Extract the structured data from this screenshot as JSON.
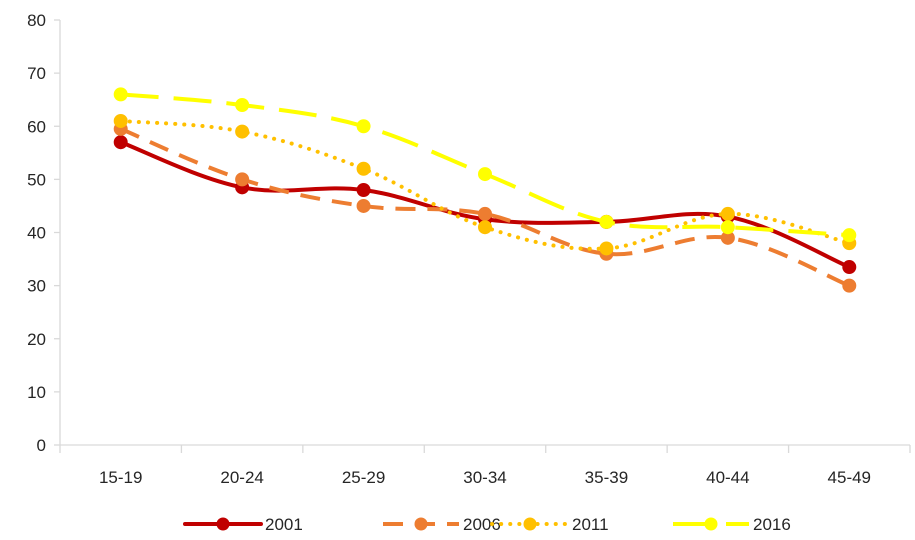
{
  "chart_data": {
    "type": "line",
    "title": "",
    "xlabel": "",
    "ylabel": "",
    "categories": [
      "15-19",
      "20-24",
      "25-29",
      "30-34",
      "35-39",
      "40-44",
      "45-49"
    ],
    "ylim": [
      0,
      80
    ],
    "yticks": [
      "0",
      "10",
      "20",
      "30",
      "40",
      "50",
      "60",
      "70",
      "80"
    ],
    "grid": false,
    "legend_position": "bottom",
    "series": [
      {
        "name": "2001",
        "color": "#c00000",
        "style": "solid",
        "values": [
          57,
          48.5,
          48,
          42.5,
          42,
          43,
          33.5
        ]
      },
      {
        "name": "2006",
        "color": "#ed7d31",
        "style": "dashed",
        "values": [
          59.5,
          50,
          45,
          43.5,
          36,
          39,
          30
        ]
      },
      {
        "name": "2011",
        "color": "#ffc000",
        "style": "dotted",
        "values": [
          61,
          59,
          52,
          41,
          37,
          43.5,
          38
        ]
      },
      {
        "name": "2016",
        "color": "#ffff00",
        "style": "longdash",
        "values": [
          66,
          64,
          60,
          51,
          42,
          41,
          39.5
        ]
      }
    ]
  }
}
